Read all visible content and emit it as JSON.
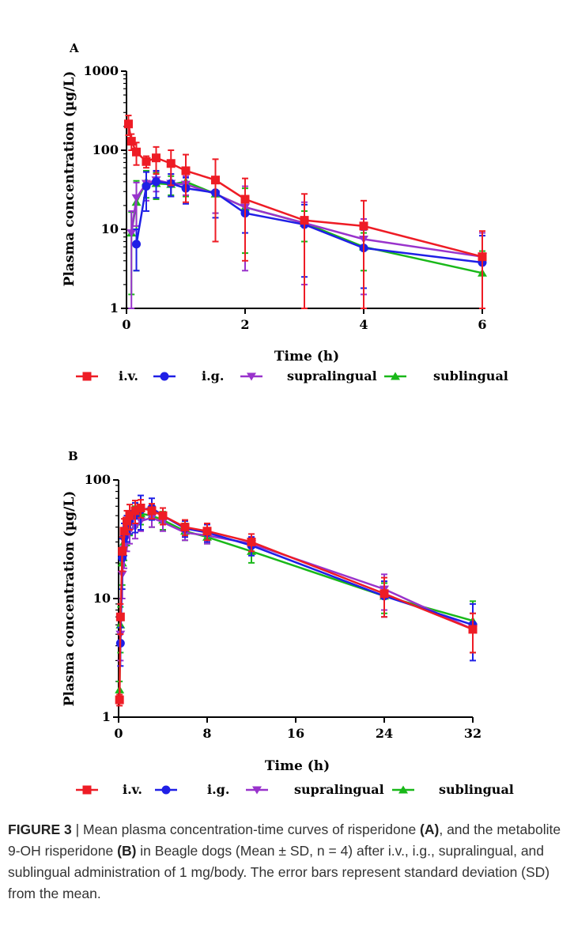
{
  "caption": {
    "label": "FIGURE 3",
    "separator": " | ",
    "parts": [
      {
        "text": "Mean plasma concentration-time curves of risperidone ",
        "bold": false
      },
      {
        "text": "(A)",
        "bold": true
      },
      {
        "text": ", and the metabolite 9-OH risperidone ",
        "bold": false
      },
      {
        "text": "(B)",
        "bold": true
      },
      {
        "text": " in Beagle dogs (Mean ± SD, n = 4) after i.v., i.g., supralingual, and sublingual administration of 1 mg/body. The error bars represent standard deviation (SD) from the mean.",
        "bold": false
      }
    ]
  },
  "colors": {
    "iv": "#ee1c25",
    "ig": "#1f1fe6",
    "supralingual": "#9933cc",
    "sublingual": "#19b819"
  },
  "chart_data": [
    {
      "panel": "A",
      "type": "line",
      "yscale": "log",
      "xlabel": "Time (h)",
      "ylabel": "Plasma concentration (µg/L)",
      "xlim": [
        0,
        6
      ],
      "ylim": [
        1,
        1000
      ],
      "xticks": [
        0,
        2,
        4,
        6
      ],
      "yticks": [
        1,
        10,
        100,
        1000
      ],
      "legend": [
        "i.v.",
        "i.g.",
        "supralingual",
        "sublingual"
      ],
      "series": [
        {
          "name": "i.v.",
          "key": "iv",
          "marker": "square",
          "x": [
            0.033,
            0.083,
            0.167,
            0.333,
            0.5,
            0.75,
            1,
            1.5,
            2,
            3,
            4,
            6
          ],
          "y": [
            215,
            130,
            95,
            72,
            80,
            68,
            55,
            42,
            24,
            13,
            11,
            4.5
          ],
          "err": [
            60,
            30,
            30,
            12,
            30,
            32,
            33,
            35,
            20,
            15,
            12,
            5
          ]
        },
        {
          "name": "i.g.",
          "key": "ig",
          "marker": "circle",
          "x": [
            0.167,
            0.333,
            0.5,
            0.75,
            1,
            1.5,
            2,
            3,
            4,
            6
          ],
          "y": [
            6.5,
            35,
            40,
            38,
            33,
            29,
            16,
            11.5,
            5.8,
            3.8
          ],
          "err": [
            3.5,
            18,
            15,
            12,
            12,
            15,
            7,
            9,
            4,
            4.5
          ]
        },
        {
          "name": "supralingual",
          "key": "supralingual",
          "marker": "triangle-down",
          "x": [
            0.083,
            0.167,
            0.333,
            0.5,
            0.75,
            1,
            1.5,
            2,
            3,
            4,
            6
          ],
          "y": [
            9,
            25,
            38,
            42,
            38,
            37,
            28,
            19,
            12,
            7.5,
            4.5
          ],
          "err": [
            8,
            14,
            15,
            12,
            12,
            10,
            12,
            16,
            10,
            6,
            4.5
          ]
        },
        {
          "name": "sublingual",
          "key": "sublingual",
          "marker": "triangle-up",
          "x": [
            0.083,
            0.167,
            0.333,
            0.5,
            0.75,
            1,
            1.5,
            2,
            3,
            4,
            6
          ],
          "y": [
            9,
            22,
            40,
            38,
            37,
            40,
            28,
            19,
            12,
            6,
            2.8
          ],
          "err": [
            7.5,
            19,
            15,
            14,
            10,
            14,
            12,
            14,
            5,
            3,
            2.5
          ]
        }
      ]
    },
    {
      "panel": "B",
      "type": "line",
      "yscale": "log",
      "xlabel": "Time (h)",
      "ylabel": "Plasma concentration (µg/L)",
      "xlim": [
        0,
        32
      ],
      "ylim": [
        1,
        100
      ],
      "xticks": [
        0,
        8,
        16,
        24,
        32
      ],
      "yticks": [
        1,
        10,
        100
      ],
      "legend": [
        "i.v.",
        "i.g.",
        "supralingual",
        "sublingual"
      ],
      "series": [
        {
          "name": "i.v.",
          "key": "iv",
          "marker": "square",
          "x": [
            0.083,
            0.167,
            0.333,
            0.5,
            0.75,
            1,
            1.5,
            2,
            3,
            4,
            6,
            8,
            12,
            24,
            32
          ],
          "y": [
            1.4,
            7,
            25,
            37,
            45,
            50,
            55,
            58,
            55,
            50,
            40,
            37,
            30,
            11,
            5.5
          ],
          "err": [
            0.15,
            2,
            8,
            10,
            10,
            12,
            12,
            10,
            8,
            8,
            6,
            6,
            5,
            4,
            2
          ]
        },
        {
          "name": "i.g.",
          "key": "ig",
          "marker": "circle",
          "x": [
            0.167,
            0.333,
            0.5,
            0.75,
            1,
            1.5,
            2,
            3,
            4,
            6,
            8,
            12,
            24,
            32
          ],
          "y": [
            4.2,
            22,
            33,
            40,
            45,
            50,
            56,
            58,
            50,
            39,
            36,
            28,
            10.5,
            6
          ],
          "err": [
            1.5,
            10,
            10,
            10,
            10,
            14,
            18,
            12,
            8,
            6,
            6,
            5,
            3.5,
            3
          ]
        },
        {
          "name": "supralingual",
          "key": "supralingual",
          "marker": "triangle-down",
          "x": [
            0.167,
            0.333,
            0.5,
            0.75,
            1,
            1.5,
            2,
            3,
            4,
            6,
            8,
            12,
            24,
            32
          ],
          "y": [
            5,
            16,
            26,
            33,
            37,
            40,
            45,
            48,
            44,
            36,
            34,
            29,
            12,
            5.5
          ],
          "err": [
            2,
            6,
            8,
            8,
            8,
            8,
            8,
            8,
            7,
            5,
            5,
            4,
            4,
            2
          ]
        },
        {
          "name": "sublingual",
          "key": "sublingual",
          "marker": "triangle-up",
          "x": [
            0.083,
            0.167,
            0.333,
            0.5,
            0.75,
            1,
            1.5,
            2,
            3,
            4,
            6,
            8,
            12,
            24,
            32
          ],
          "y": [
            1.7,
            6,
            20,
            30,
            38,
            44,
            50,
            52,
            50,
            46,
            37,
            33,
            25,
            10.5,
            6.5
          ],
          "err": [
            0.3,
            2.5,
            7,
            9,
            10,
            10,
            10,
            10,
            10,
            8,
            6,
            4,
            5,
            3,
            3
          ]
        }
      ]
    }
  ]
}
